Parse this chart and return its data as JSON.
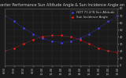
{
  "title": "Solar PV/Inverter Performance Sun Altitude Angle & Sun Incidence Angle on PV Panels",
  "bg_color": "#1a1a1a",
  "plot_bg_color": "#1a1a1a",
  "grid_color": "#444444",
  "text_color": "#cccccc",
  "series": [
    {
      "label": "HOT 71.4°N Sun Altitude",
      "color": "#4444ff",
      "points": [
        [
          0,
          70
        ],
        [
          1,
          62
        ],
        [
          2,
          52
        ],
        [
          3,
          44
        ],
        [
          4,
          38
        ],
        [
          5,
          34
        ],
        [
          6,
          32
        ],
        [
          7,
          34
        ],
        [
          8,
          38
        ],
        [
          9,
          44
        ],
        [
          10,
          52
        ],
        [
          11,
          62
        ],
        [
          12,
          70
        ]
      ]
    },
    {
      "label": "Sun Incidence Angle",
      "color": "#ff2222",
      "points": [
        [
          0,
          20
        ],
        [
          1,
          24
        ],
        [
          2,
          30
        ],
        [
          3,
          36
        ],
        [
          4,
          40
        ],
        [
          5,
          42
        ],
        [
          6,
          42
        ],
        [
          7,
          40
        ],
        [
          8,
          36
        ],
        [
          9,
          30
        ],
        [
          10,
          24
        ],
        [
          11,
          20
        ],
        [
          12,
          18
        ]
      ]
    }
  ],
  "ylim": [
    0,
    80
  ],
  "yticks": [
    0,
    10,
    20,
    30,
    40,
    50,
    60,
    70,
    80
  ],
  "xlim": [
    0,
    12
  ],
  "xtick_labels": [
    "6:00",
    "7:00",
    "8:00",
    "9:00",
    "10:00",
    "11:00",
    "12:00",
    "13:00",
    "14:00",
    "15:00",
    "16:00",
    "17:00",
    "18:00"
  ],
  "title_fontsize": 3.5,
  "axis_fontsize": 3.0,
  "tick_fontsize": 2.5,
  "legend_fontsize": 2.8,
  "marker": ".",
  "markersize": 1.5,
  "linewidth": 0.5,
  "legend_loc": "upper right"
}
